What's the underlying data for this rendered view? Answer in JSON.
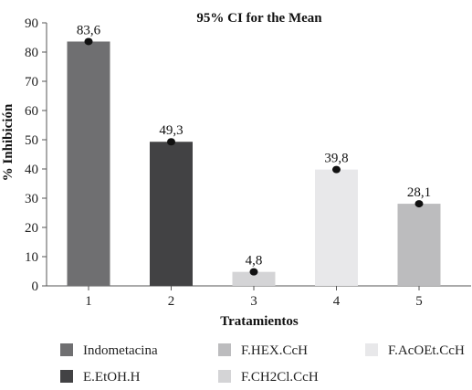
{
  "chart_data": {
    "type": "bar",
    "title": "95% CI for the Mean",
    "xlabel": "Tratamientos",
    "ylabel": "% Inhibición",
    "ylim": [
      0,
      90
    ],
    "yticks": [
      0,
      10,
      20,
      30,
      40,
      50,
      60,
      70,
      80,
      90
    ],
    "categories": [
      "1",
      "2",
      "3",
      "4",
      "5"
    ],
    "values": [
      83.6,
      49.3,
      4.8,
      39.8,
      28.1
    ],
    "value_labels": [
      "83,6",
      "49,3",
      "4,8",
      "39,8",
      "28,1"
    ],
    "colors": [
      "#6f6f71",
      "#424244",
      "#d4d4d6",
      "#e8e8ea",
      "#bcbcbe"
    ],
    "grid": false,
    "legend": {
      "placement": "bottom",
      "entries": [
        {
          "label": "Indometacina",
          "color": "#6f6f71"
        },
        {
          "label": "E.EtOH.H",
          "color": "#424244"
        },
        {
          "label": "F.HEX.CcH",
          "color": "#bcbcbe"
        },
        {
          "label": "F.CH2Cl.CcH",
          "color": "#d4d4d6"
        },
        {
          "label": "F.AcOEt.CcH",
          "color": "#e8e8ea"
        }
      ]
    }
  }
}
